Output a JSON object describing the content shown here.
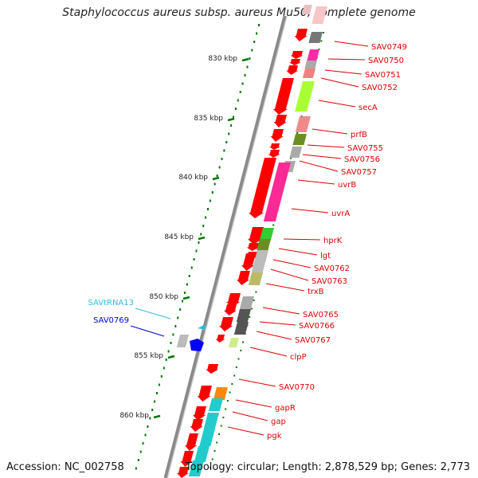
{
  "title": "Staphylococcus aureus subsp. aureus Mu50, complete genome",
  "accession": "Accession: NC_002758",
  "summary": "Topology: circular; Length: 2,878,529 bp; Genes: 2,773",
  "ruler": {
    "ticks": [
      {
        "label": "830 kbp"
      },
      {
        "label": "835 kbp"
      },
      {
        "label": "840 kbp"
      },
      {
        "label": "845 kbp"
      },
      {
        "label": "850 kbp"
      },
      {
        "label": "855 kbp"
      },
      {
        "label": "860 kbp"
      }
    ]
  },
  "colors": {
    "forward_arrow": "#ff0000",
    "label_red": "#dd0000",
    "label_trna": "#33bbdd",
    "label_blue": "#0000cc",
    "backbone": "#888888",
    "tick": "#007700"
  },
  "genes": [
    {
      "label": "SAV0749",
      "color": "#dd0000"
    },
    {
      "label": "SAV0750",
      "color": "#dd0000"
    },
    {
      "label": "SAV0751",
      "color": "#dd0000"
    },
    {
      "label": "SAV0752",
      "color": "#dd0000"
    },
    {
      "label": "secA",
      "color": "#dd0000"
    },
    {
      "label": "prfB",
      "color": "#dd0000"
    },
    {
      "label": "SAV0755",
      "color": "#dd0000"
    },
    {
      "label": "SAV0756",
      "color": "#dd0000"
    },
    {
      "label": "SAV0757",
      "color": "#dd0000"
    },
    {
      "label": "uvrB",
      "color": "#dd0000"
    },
    {
      "label": "uvrA",
      "color": "#dd0000"
    },
    {
      "label": "hprK",
      "color": "#dd0000"
    },
    {
      "label": "lgt",
      "color": "#dd0000"
    },
    {
      "label": "SAV0762",
      "color": "#dd0000"
    },
    {
      "label": "SAV0763",
      "color": "#dd0000"
    },
    {
      "label": "trxB",
      "color": "#dd0000"
    },
    {
      "label": "SAV0765",
      "color": "#dd0000"
    },
    {
      "label": "SAV0766",
      "color": "#dd0000"
    },
    {
      "label": "SAV0767",
      "color": "#dd0000"
    },
    {
      "label": "clpP",
      "color": "#dd0000"
    },
    {
      "label": "SAV0770",
      "color": "#dd0000"
    },
    {
      "label": "gapR",
      "color": "#dd0000"
    },
    {
      "label": "gap",
      "color": "#dd0000"
    },
    {
      "label": "pgk",
      "color": "#dd0000"
    }
  ],
  "left_genes": [
    {
      "label": "SAVtRNA13",
      "color": "#33bbdd"
    },
    {
      "label": "SAV0769",
      "color": "#0000cc"
    }
  ]
}
